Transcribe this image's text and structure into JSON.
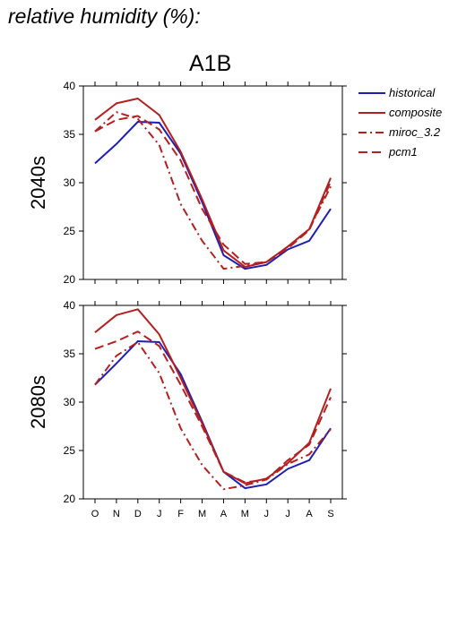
{
  "page_title": "relative humidity (%):",
  "scenario": "A1B",
  "legend": [
    {
      "name": "historical",
      "color": "#1f1fb4",
      "dash": "solid"
    },
    {
      "name": "composite",
      "color": "#b41f1f",
      "dash": "solid"
    },
    {
      "name": "miroc_3.2",
      "color": "#b41f1f",
      "dash": "dashdot"
    },
    {
      "name": "pcm1",
      "color": "#b41f1f",
      "dash": "dash"
    }
  ],
  "chart_data": [
    {
      "type": "line",
      "panel_label": "2040s",
      "categories": [
        "O",
        "N",
        "D",
        "J",
        "F",
        "M",
        "A",
        "M",
        "J",
        "J",
        "A",
        "S"
      ],
      "ylim": [
        20,
        40
      ],
      "yticks": [
        20,
        25,
        30,
        35,
        40
      ],
      "series": [
        {
          "name": "historical",
          "values": [
            32.0,
            34.0,
            36.3,
            36.2,
            33.0,
            28.0,
            22.5,
            21.1,
            21.5,
            23.1,
            24.0,
            27.3
          ]
        },
        {
          "name": "composite",
          "values": [
            36.5,
            38.2,
            38.7,
            37.0,
            33.2,
            28.3,
            23.0,
            21.3,
            21.8,
            23.4,
            25.2,
            30.5
          ]
        },
        {
          "name": "miroc_3.2",
          "values": [
            35.3,
            37.3,
            36.6,
            33.9,
            27.8,
            24.0,
            21.1,
            21.4,
            21.8,
            23.4,
            25.2,
            29.6
          ]
        },
        {
          "name": "pcm1",
          "values": [
            35.3,
            36.5,
            36.9,
            35.5,
            32.3,
            27.3,
            23.6,
            21.6,
            21.8,
            23.2,
            25.1,
            30.1
          ]
        }
      ]
    },
    {
      "type": "line",
      "panel_label": "2080s",
      "categories": [
        "O",
        "N",
        "D",
        "J",
        "F",
        "M",
        "A",
        "M",
        "J",
        "J",
        "A",
        "S"
      ],
      "ylim": [
        20,
        40
      ],
      "yticks": [
        20,
        25,
        30,
        35,
        40
      ],
      "series": [
        {
          "name": "historical",
          "values": [
            31.8,
            34.0,
            36.3,
            36.2,
            32.9,
            28.0,
            22.8,
            21.1,
            21.5,
            23.1,
            24.0,
            27.3
          ]
        },
        {
          "name": "composite",
          "values": [
            37.2,
            39.0,
            39.6,
            37.0,
            32.5,
            27.8,
            22.8,
            21.6,
            22.1,
            23.7,
            25.8,
            31.4
          ]
        },
        {
          "name": "miroc_3.2",
          "values": [
            31.8,
            34.8,
            36.2,
            33.0,
            27.3,
            23.5,
            21.0,
            21.4,
            22.0,
            23.6,
            24.6,
            27.2
          ]
        },
        {
          "name": "pcm1",
          "values": [
            35.5,
            36.3,
            37.3,
            35.8,
            31.8,
            27.5,
            22.8,
            21.7,
            22.0,
            24.0,
            25.6,
            30.5
          ]
        }
      ]
    }
  ]
}
